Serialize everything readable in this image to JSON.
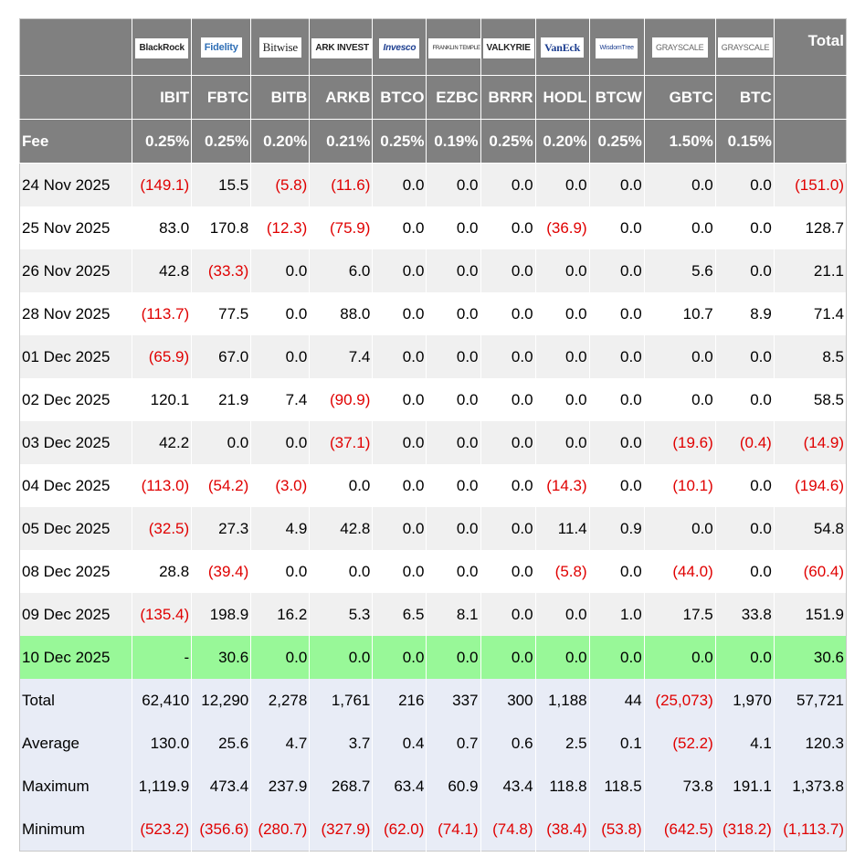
{
  "header": {
    "logos": [
      "BlackRock",
      "Fidelity",
      "Bitwise",
      "ARK INVEST",
      "Invesco",
      "FRANKLIN TEMPLETON",
      "VALKYRIE",
      "VanEck",
      "WisdomTree",
      "GRAYSCALE",
      "GRAYSCALE"
    ],
    "total_label": "Total",
    "tickers": [
      "IBIT",
      "FBTC",
      "BITB",
      "ARKB",
      "BTCO",
      "EZBC",
      "BRRR",
      "HODL",
      "BTCW",
      "GBTC",
      "BTC"
    ],
    "fee_label": "Fee",
    "fees": [
      "0.25%",
      "0.25%",
      "0.20%",
      "0.21%",
      "0.25%",
      "0.19%",
      "0.25%",
      "0.20%",
      "0.25%",
      "1.50%",
      "0.15%"
    ]
  },
  "rows": [
    {
      "date": "24 Nov 2025",
      "values": [
        "(149.1)",
        "15.5",
        "(5.8)",
        "(11.6)",
        "0.0",
        "0.0",
        "0.0",
        "0.0",
        "0.0",
        "0.0",
        "0.0",
        "(151.0)"
      ]
    },
    {
      "date": "25 Nov 2025",
      "values": [
        "83.0",
        "170.8",
        "(12.3)",
        "(75.9)",
        "0.0",
        "0.0",
        "0.0",
        "(36.9)",
        "0.0",
        "0.0",
        "0.0",
        "128.7"
      ]
    },
    {
      "date": "26 Nov 2025",
      "values": [
        "42.8",
        "(33.3)",
        "0.0",
        "6.0",
        "0.0",
        "0.0",
        "0.0",
        "0.0",
        "0.0",
        "5.6",
        "0.0",
        "21.1"
      ]
    },
    {
      "date": "28 Nov 2025",
      "values": [
        "(113.7)",
        "77.5",
        "0.0",
        "88.0",
        "0.0",
        "0.0",
        "0.0",
        "0.0",
        "0.0",
        "10.7",
        "8.9",
        "71.4"
      ]
    },
    {
      "date": "01 Dec 2025",
      "values": [
        "(65.9)",
        "67.0",
        "0.0",
        "7.4",
        "0.0",
        "0.0",
        "0.0",
        "0.0",
        "0.0",
        "0.0",
        "0.0",
        "8.5"
      ]
    },
    {
      "date": "02 Dec 2025",
      "values": [
        "120.1",
        "21.9",
        "7.4",
        "(90.9)",
        "0.0",
        "0.0",
        "0.0",
        "0.0",
        "0.0",
        "0.0",
        "0.0",
        "58.5"
      ]
    },
    {
      "date": "03 Dec 2025",
      "values": [
        "42.2",
        "0.0",
        "0.0",
        "(37.1)",
        "0.0",
        "0.0",
        "0.0",
        "0.0",
        "0.0",
        "(19.6)",
        "(0.4)",
        "(14.9)"
      ]
    },
    {
      "date": "04 Dec 2025",
      "values": [
        "(113.0)",
        "(54.2)",
        "(3.0)",
        "0.0",
        "0.0",
        "0.0",
        "0.0",
        "(14.3)",
        "0.0",
        "(10.1)",
        "0.0",
        "(194.6)"
      ]
    },
    {
      "date": "05 Dec 2025",
      "values": [
        "(32.5)",
        "27.3",
        "4.9",
        "42.8",
        "0.0",
        "0.0",
        "0.0",
        "11.4",
        "0.9",
        "0.0",
        "0.0",
        "54.8"
      ]
    },
    {
      "date": "08 Dec 2025",
      "values": [
        "28.8",
        "(39.4)",
        "0.0",
        "0.0",
        "0.0",
        "0.0",
        "0.0",
        "(5.8)",
        "0.0",
        "(44.0)",
        "0.0",
        "(60.4)"
      ]
    },
    {
      "date": "09 Dec 2025",
      "values": [
        "(135.4)",
        "198.9",
        "16.2",
        "5.3",
        "6.5",
        "8.1",
        "0.0",
        "0.0",
        "1.0",
        "17.5",
        "33.8",
        "151.9"
      ]
    },
    {
      "date": "10 Dec 2025",
      "values": [
        "-",
        "30.6",
        "0.0",
        "0.0",
        "0.0",
        "0.0",
        "0.0",
        "0.0",
        "0.0",
        "0.0",
        "0.0",
        "30.6"
      ],
      "highlight": "#98f898"
    }
  ],
  "summary": [
    {
      "label": "Total",
      "values": [
        "62,410",
        "12,290",
        "2,278",
        "1,761",
        "216",
        "337",
        "300",
        "1,188",
        "44",
        "(25,073)",
        "1,970",
        "57,721"
      ]
    },
    {
      "label": "Average",
      "values": [
        "130.0",
        "25.6",
        "4.7",
        "3.7",
        "0.4",
        "0.7",
        "0.6",
        "2.5",
        "0.1",
        "(52.2)",
        "4.1",
        "120.3"
      ]
    },
    {
      "label": "Maximum",
      "values": [
        "1,119.9",
        "473.4",
        "237.9",
        "268.7",
        "63.4",
        "60.9",
        "43.4",
        "118.8",
        "118.5",
        "73.8",
        "191.1",
        "1,373.8"
      ]
    },
    {
      "label": "Minimum",
      "values": [
        "(523.2)",
        "(356.6)",
        "(280.7)",
        "(327.9)",
        "(62.0)",
        "(74.1)",
        "(74.8)",
        "(38.4)",
        "(53.8)",
        "(642.5)",
        "(318.2)",
        "(1,113.7)"
      ]
    }
  ]
}
